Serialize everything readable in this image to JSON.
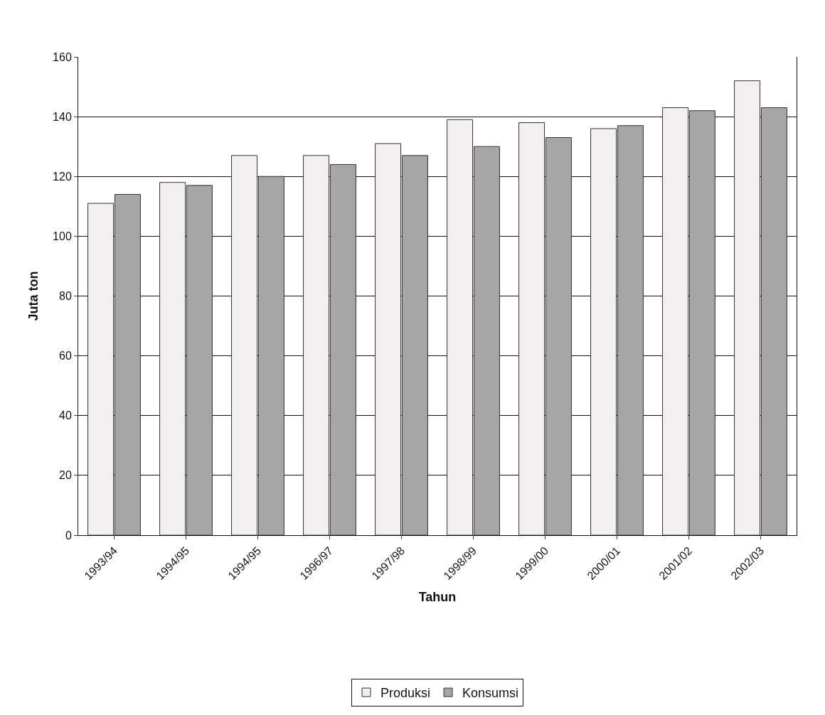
{
  "chart_data": {
    "type": "bar",
    "xlabel": "Tahun",
    "ylabel": "Juta ton",
    "categories": [
      "1993/94",
      "1994/95",
      "1994/95",
      "1996/97",
      "1997/98",
      "1998/99",
      "1999/00",
      "2000/01",
      "2001/02",
      "2002/03"
    ],
    "series": [
      {
        "name": "Produksi",
        "color": "#f2eff1",
        "values": [
          111,
          118,
          127,
          127,
          131,
          139,
          138,
          136,
          143,
          152
        ]
      },
      {
        "name": "Konsumsi",
        "color": "#a6a6a6",
        "values": [
          114,
          117,
          120,
          124,
          127,
          130,
          133,
          137,
          142,
          143
        ]
      }
    ],
    "ylim": [
      0,
      160
    ],
    "yticks": [
      0,
      20,
      40,
      60,
      80,
      100,
      120,
      140,
      160
    ],
    "grid": "y",
    "legend": "bottom"
  }
}
